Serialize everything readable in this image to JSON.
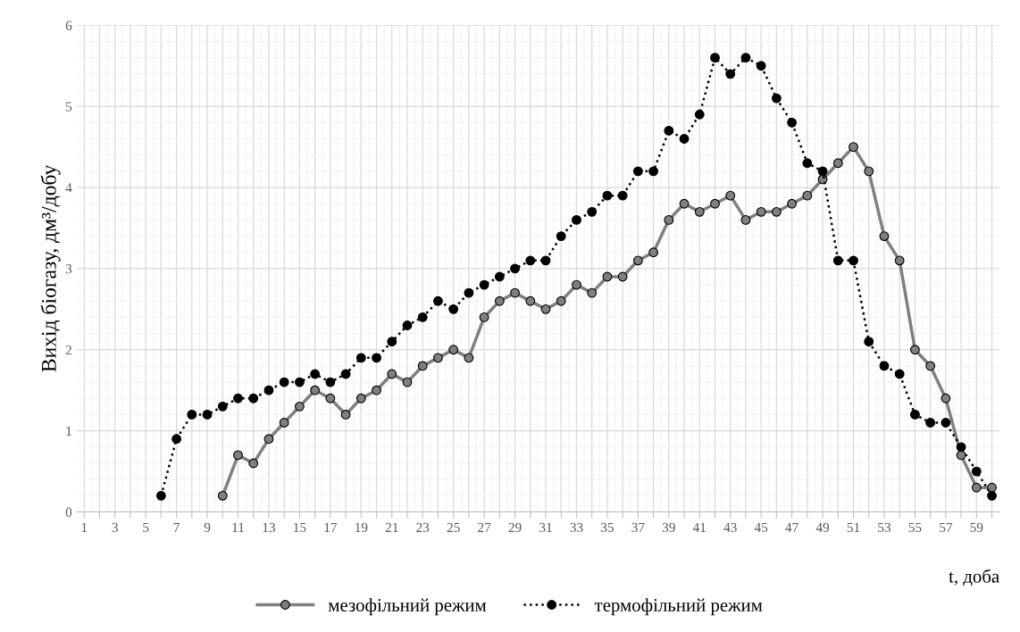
{
  "chart_data": {
    "type": "line",
    "xlabel": "t, доба",
    "ylabel": "Вихід біогазу, дм³/добу",
    "categories": [
      "1",
      null,
      "3",
      null,
      "5",
      null,
      "7",
      null,
      "9",
      null,
      "11",
      null,
      "13",
      null,
      "15",
      null,
      "17",
      null,
      "19",
      null,
      "21",
      null,
      "23",
      null,
      "25",
      null,
      "27",
      null,
      "29",
      null,
      "31",
      null,
      "33",
      null,
      "35",
      null,
      "37",
      null,
      "39",
      null,
      "41",
      null,
      "43",
      null,
      "45",
      null,
      "47",
      null,
      "49",
      null,
      "51",
      null,
      "53",
      null,
      "55",
      null,
      "57",
      null,
      "59",
      null
    ],
    "series": [
      {
        "name": "мезофільний режим",
        "color": "#7f7f7f",
        "line_style": "solid",
        "values": [
          null,
          null,
          null,
          null,
          null,
          null,
          null,
          null,
          null,
          0.2,
          0.7,
          0.6,
          0.9,
          1.1,
          1.3,
          1.5,
          1.4,
          1.2,
          1.4,
          1.5,
          1.7,
          1.6,
          1.8,
          1.9,
          2.0,
          1.9,
          2.4,
          2.6,
          2.7,
          2.6,
          2.5,
          2.6,
          2.8,
          2.7,
          2.9,
          2.9,
          3.1,
          3.2,
          3.6,
          3.8,
          3.7,
          3.8,
          3.9,
          3.6,
          3.7,
          3.7,
          3.8,
          3.9,
          4.1,
          4.3,
          4.5,
          4.2,
          3.4,
          3.1,
          2.0,
          1.8,
          1.4,
          0.7,
          0.3,
          0.3
        ]
      },
      {
        "name": "термофільний режим",
        "color": "#000000",
        "line_style": "dotted",
        "values": [
          null,
          null,
          null,
          null,
          null,
          0.2,
          0.9,
          1.2,
          1.2,
          1.3,
          1.4,
          1.4,
          1.5,
          1.6,
          1.6,
          1.7,
          1.6,
          1.7,
          1.9,
          1.9,
          2.1,
          2.3,
          2.4,
          2.6,
          2.5,
          2.7,
          2.8,
          2.9,
          3.0,
          3.1,
          3.1,
          3.4,
          3.6,
          3.7,
          3.9,
          3.9,
          4.2,
          4.2,
          4.7,
          4.6,
          4.9,
          5.6,
          5.4,
          5.6,
          5.5,
          5.1,
          4.8,
          4.3,
          4.2,
          3.1,
          3.1,
          2.1,
          1.8,
          1.7,
          1.2,
          1.1,
          1.1,
          0.8,
          0.5,
          0.2
        ]
      }
    ],
    "ylim": [
      0,
      6
    ],
    "yticks": [
      0,
      1,
      2,
      3,
      4,
      5,
      6
    ],
    "grid": true,
    "legend": "bottom",
    "marker": "circle"
  }
}
